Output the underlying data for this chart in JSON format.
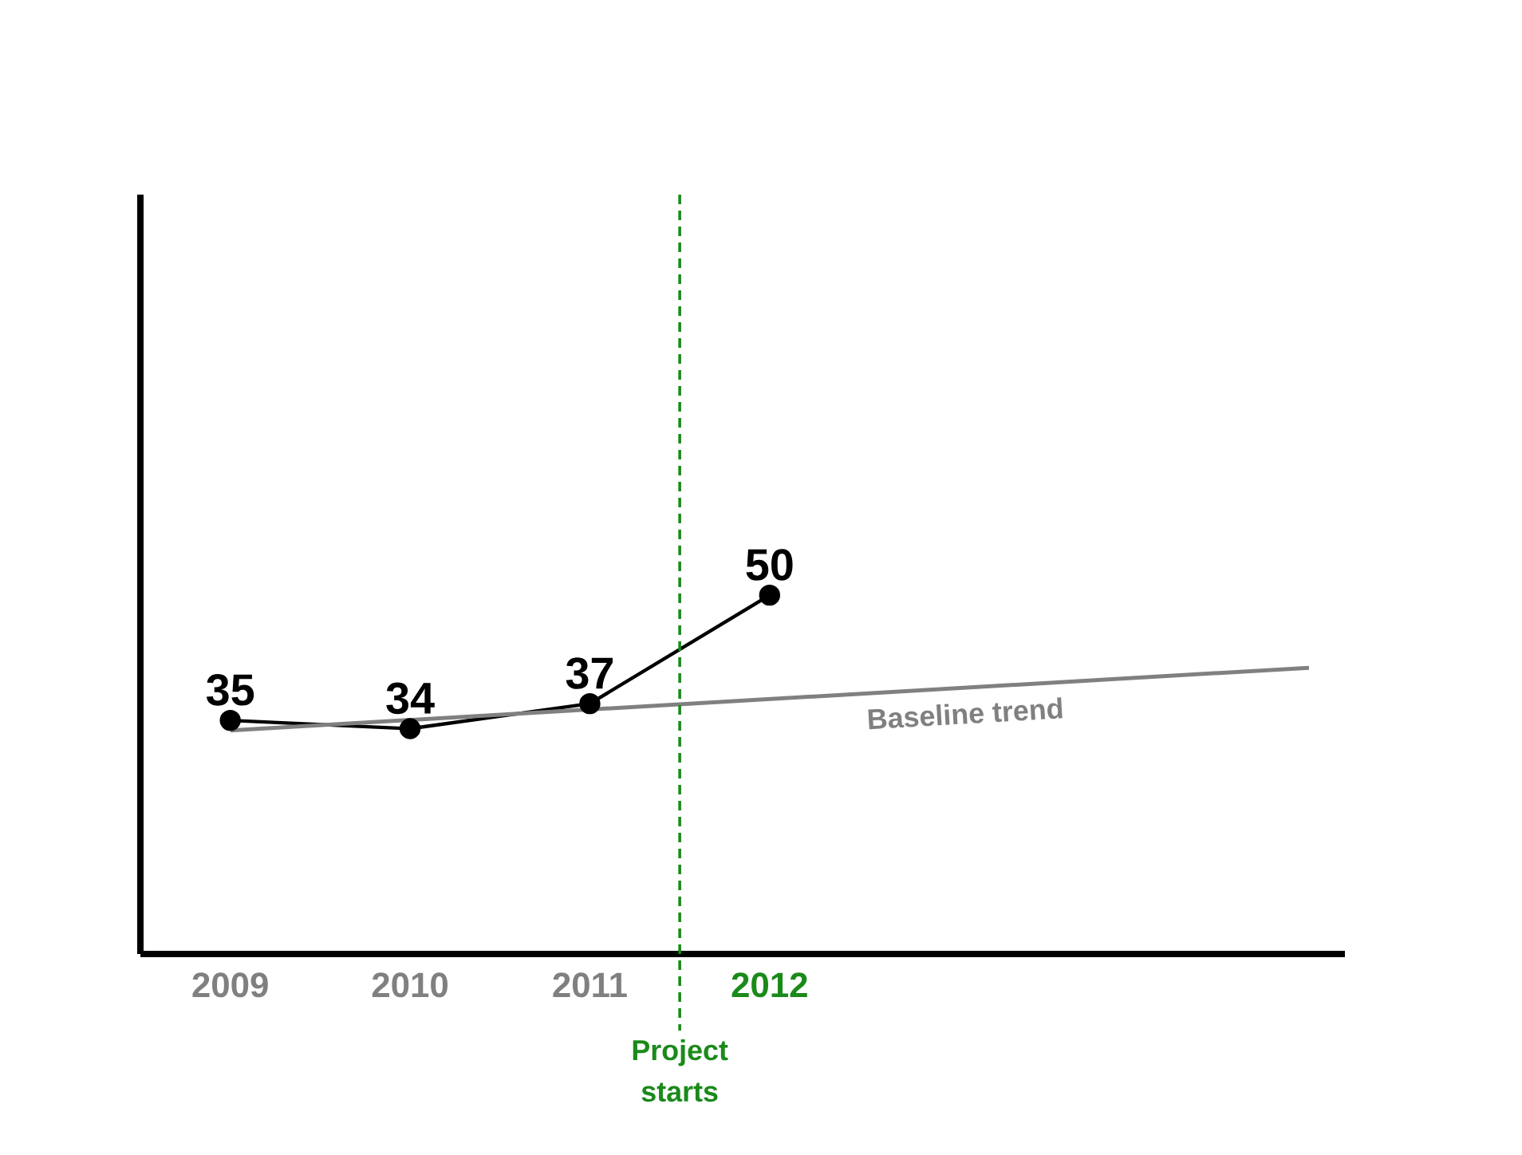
{
  "chart_data": {
    "type": "line",
    "x": [
      2009,
      2010,
      2011,
      2012
    ],
    "xlim": [
      2008.5,
      2015.2
    ],
    "xticks": [
      2009,
      2010,
      2011,
      2012
    ],
    "ylim": [
      7,
      98
    ],
    "marker": "circle",
    "grid": false,
    "legend": false,
    "tick_labels": "x",
    "series": [
      {
        "color": "#000000",
        "values": [
          35,
          34,
          37,
          50
        ],
        "value_labels": [
          "35",
          "34",
          "37",
          "50"
        ]
      },
      {
        "name": "Baseline trend",
        "type": "line",
        "color": "#808080",
        "x": [
          2009,
          2015
        ],
        "values": [
          33.8,
          41.3
        ],
        "marker": "none"
      }
    ],
    "ref_lines": [
      {
        "axis": "x",
        "value": 2011.5,
        "label": "Project starts",
        "color": "#1a8a1a",
        "line_style": "dashed"
      }
    ]
  }
}
